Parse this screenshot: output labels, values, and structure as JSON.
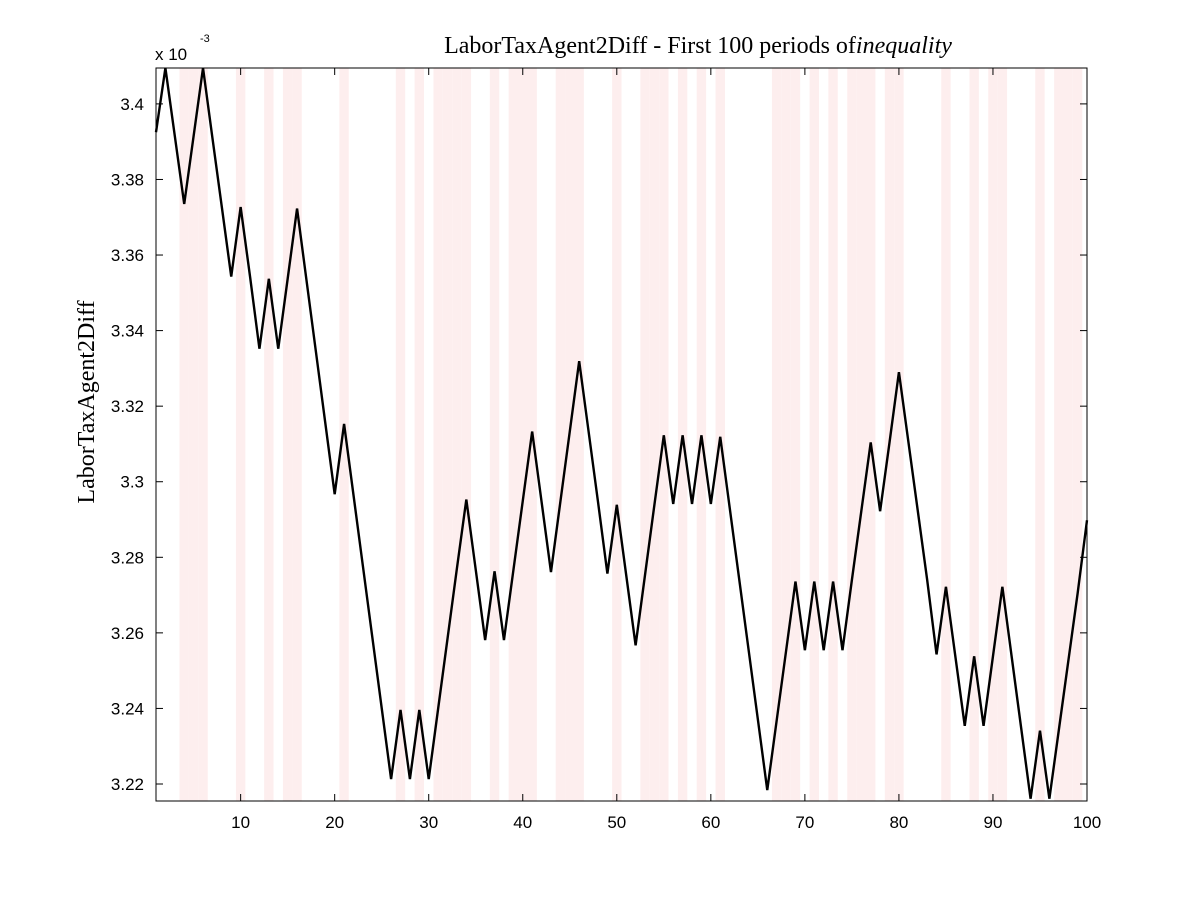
{
  "chart_data": {
    "type": "line",
    "title": "LaborTaxAgent2Diff - First 100 periods of",
    "title_italic": "inequality",
    "ylabel": "LaborTaxAgent2Diff",
    "xlabel": "",
    "y_multiplier_base": "x 10",
    "y_multiplier_exp": "-3",
    "xlim": [
      1,
      100
    ],
    "ylim": [
      3.2155,
      3.4095
    ],
    "xticks": [
      10,
      20,
      30,
      40,
      50,
      60,
      70,
      80,
      90,
      100
    ],
    "xtick_labels": [
      "10",
      "20",
      "30",
      "40",
      "50",
      "60",
      "70",
      "80",
      "90",
      "100"
    ],
    "yticks": [
      3.22,
      3.24,
      3.26,
      3.28,
      3.3,
      3.32,
      3.34,
      3.36,
      3.38,
      3.4
    ],
    "ytick_labels": [
      "3.22",
      "3.24",
      "3.26",
      "3.28",
      "3.3",
      "3.32",
      "3.34",
      "3.36",
      "3.38",
      "3.4"
    ],
    "grid": false,
    "line_color": "#000000",
    "shade_color": "#fdeeee",
    "shaded_periods": [
      4,
      5,
      6,
      10,
      13,
      15,
      16,
      21,
      27,
      29,
      31,
      32,
      33,
      34,
      37,
      39,
      40,
      41,
      44,
      45,
      46,
      50,
      53,
      54,
      55,
      57,
      59,
      61,
      67,
      68,
      69,
      71,
      73,
      75,
      76,
      77,
      79,
      80,
      85,
      88,
      90,
      91,
      95,
      97,
      98,
      99
    ],
    "series": [
      {
        "x": [
          1,
          2,
          3,
          4,
          5,
          6,
          7,
          8,
          9,
          10,
          11,
          12,
          13,
          14,
          15,
          16,
          17,
          18,
          19,
          20,
          21,
          22,
          23,
          24,
          25,
          26,
          27,
          28,
          29,
          30,
          31,
          32,
          33,
          34,
          35,
          36,
          37,
          38,
          39,
          40,
          41,
          42,
          43,
          44,
          45,
          46,
          47,
          48,
          49,
          50,
          51,
          52,
          53,
          54,
          55,
          56,
          57,
          58,
          59,
          60,
          61,
          62,
          63,
          64,
          65,
          66,
          67,
          68,
          69,
          70,
          71,
          72,
          73,
          74,
          75,
          76,
          77,
          78,
          79,
          80,
          81,
          82,
          83,
          84,
          85,
          86,
          87,
          88,
          89,
          90,
          91,
          92,
          93,
          94,
          95,
          96,
          97,
          98,
          99,
          100
        ],
        "values": [
          3.3925,
          3.4095,
          3.3915,
          3.3735,
          3.3915,
          3.4095,
          3.391,
          3.3727,
          3.3543,
          3.3727,
          3.3543,
          3.3352,
          3.3537,
          3.3352,
          3.3537,
          3.3723,
          3.3534,
          3.3345,
          3.3156,
          3.2967,
          3.3153,
          3.2965,
          3.2777,
          3.2589,
          3.2401,
          3.2213,
          3.2396,
          3.2213,
          3.2396,
          3.2213,
          3.2399,
          3.2585,
          3.2771,
          3.2953,
          3.2767,
          3.2581,
          3.2763,
          3.2581,
          3.2765,
          3.2949,
          3.3133,
          3.2947,
          3.2761,
          3.2947,
          3.3133,
          3.3319,
          3.3133,
          3.2947,
          3.2757,
          3.2939,
          3.2753,
          3.2567,
          3.2753,
          3.2939,
          3.3123,
          3.2941,
          3.3123,
          3.2941,
          3.3123,
          3.2941,
          3.3119,
          3.2932,
          3.2745,
          3.2558,
          3.2371,
          3.2184,
          3.2368,
          3.2552,
          3.2736,
          3.2554,
          3.2736,
          3.2554,
          3.2736,
          3.2554,
          3.274,
          3.2922,
          3.3104,
          3.2922,
          3.3104,
          3.329,
          3.3107,
          3.2924,
          3.2741,
          3.2543,
          3.2722,
          3.2538,
          3.2354,
          3.2538,
          3.2354,
          3.2538,
          3.2722,
          3.2535,
          3.2348,
          3.2161,
          3.2341,
          3.2161,
          3.2342,
          3.2523,
          3.2704,
          3.2898
        ]
      }
    ]
  }
}
